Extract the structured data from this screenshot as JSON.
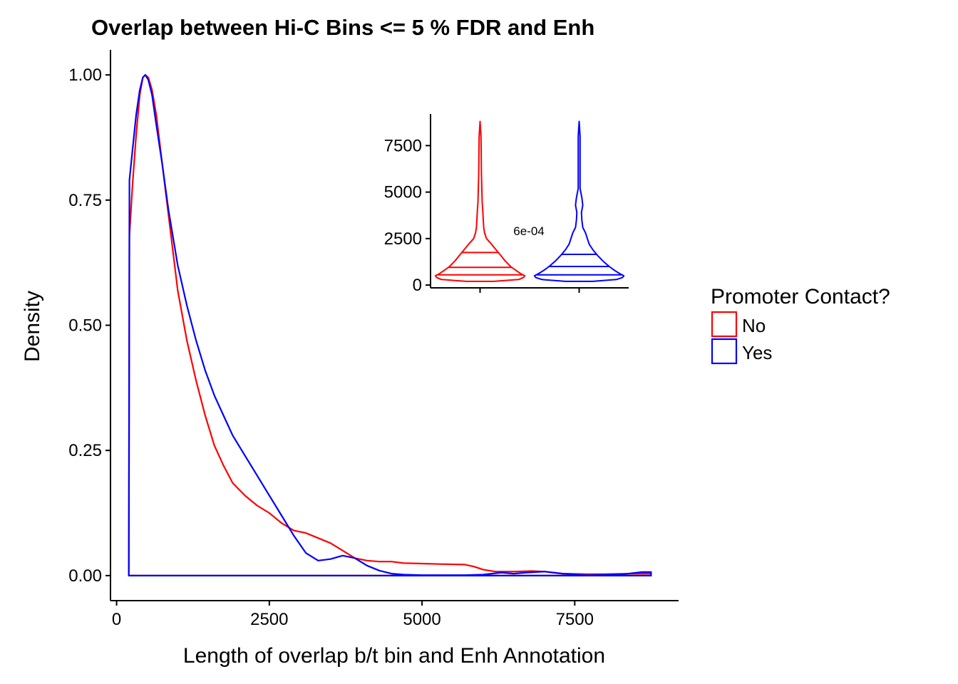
{
  "chart_data": [
    {
      "type": "area",
      "title": "Overlap between Hi-C Bins <= 5 % FDR and Enh",
      "xlabel": "Length of overlap b/t bin and Enh Annotation",
      "ylabel": "Density",
      "xlim": [
        -100,
        9200
      ],
      "ylim": [
        -0.05,
        1.05
      ],
      "x_ticks": [
        "0",
        "2500",
        "5000",
        "7500"
      ],
      "y_ticks": [
        "0.00",
        "0.25",
        "0.50",
        "0.75",
        "1.00"
      ],
      "grid": false,
      "legend": {
        "title": "Promoter Contact?",
        "position": "right",
        "entries": [
          {
            "label": "No",
            "color": "#ff0000"
          },
          {
            "label": "Yes",
            "color": "#0000ff"
          }
        ]
      },
      "series": [
        {
          "name": "No",
          "color": "#ff0000",
          "x": [
            200,
            210,
            260,
            320,
            380,
            430,
            470,
            520,
            580,
            650,
            750,
            850,
            1000,
            1150,
            1300,
            1450,
            1600,
            1750,
            1900,
            2100,
            2300,
            2500,
            2700,
            2900,
            3100,
            3300,
            3500,
            3700,
            3900,
            4100,
            4300,
            4500,
            4700,
            5000,
            5300,
            5700,
            5850,
            6000,
            6200,
            6500,
            6800,
            7000,
            7300,
            7700,
            8000,
            8400,
            8750
          ],
          "y": [
            0.0,
            0.68,
            0.78,
            0.88,
            0.96,
            0.995,
            1.0,
            0.995,
            0.97,
            0.92,
            0.82,
            0.72,
            0.57,
            0.47,
            0.39,
            0.32,
            0.26,
            0.22,
            0.185,
            0.16,
            0.14,
            0.125,
            0.105,
            0.09,
            0.085,
            0.075,
            0.065,
            0.05,
            0.035,
            0.03,
            0.028,
            0.028,
            0.025,
            0.024,
            0.023,
            0.022,
            0.018,
            0.012,
            0.008,
            0.008,
            0.009,
            0.008,
            0.004,
            0.003,
            0.003,
            0.004,
            0.004
          ]
        },
        {
          "name": "Yes",
          "color": "#0000ff",
          "x": [
            200,
            210,
            260,
            320,
            380,
            430,
            470,
            520,
            580,
            650,
            750,
            850,
            1000,
            1150,
            1300,
            1450,
            1600,
            1750,
            1900,
            2100,
            2300,
            2500,
            2700,
            2900,
            3100,
            3300,
            3500,
            3700,
            3900,
            4100,
            4300,
            4500,
            4700,
            5000,
            5300,
            5700,
            6000,
            6300,
            6500,
            6700,
            7000,
            7300,
            7700,
            8000,
            8300,
            8600,
            8750
          ],
          "y": [
            0.0,
            0.79,
            0.85,
            0.92,
            0.97,
            0.995,
            1.0,
            0.99,
            0.96,
            0.9,
            0.82,
            0.73,
            0.62,
            0.54,
            0.47,
            0.41,
            0.36,
            0.32,
            0.28,
            0.24,
            0.2,
            0.16,
            0.12,
            0.08,
            0.045,
            0.03,
            0.033,
            0.04,
            0.035,
            0.02,
            0.01,
            0.004,
            0.002,
            0.001,
            0.001,
            0.001,
            0.002,
            0.006,
            0.004,
            0.006,
            0.008,
            0.004,
            0.001,
            0.002,
            0.003,
            0.007,
            0.007
          ]
        }
      ]
    },
    {
      "type": "violin",
      "annotation": "6e-04",
      "ylim": [
        -150,
        9200
      ],
      "y_ticks": [
        "0",
        "2500",
        "5000",
        "7500"
      ],
      "groups": [
        {
          "name": "No",
          "color": "#ff0000",
          "quantiles": [
            550,
            950,
            1750
          ],
          "y": [
            200,
            300,
            400,
            500,
            600,
            800,
            1000,
            1300,
            1600,
            1900,
            2200,
            2500,
            2800,
            3100,
            3500,
            4000,
            4500,
            5000,
            6000,
            7000,
            8000,
            8800
          ],
          "halfwidth": [
            0.3,
            0.85,
            0.95,
            0.98,
            0.9,
            0.78,
            0.67,
            0.55,
            0.45,
            0.35,
            0.25,
            0.14,
            0.1,
            0.08,
            0.07,
            0.06,
            0.045,
            0.04,
            0.03,
            0.025,
            0.02,
            0.0
          ]
        },
        {
          "name": "Yes",
          "color": "#0000ff",
          "quantiles": [
            550,
            1000,
            1650
          ],
          "y": [
            200,
            300,
            400,
            500,
            600,
            800,
            1000,
            1300,
            1600,
            1900,
            2200,
            2500,
            2800,
            3100,
            3500,
            3900,
            4300,
            4700,
            5200,
            6000,
            7000,
            8000,
            8800
          ],
          "halfwidth": [
            0.3,
            0.82,
            0.95,
            0.98,
            0.9,
            0.77,
            0.66,
            0.52,
            0.4,
            0.3,
            0.22,
            0.18,
            0.14,
            0.08,
            0.06,
            0.05,
            0.08,
            0.06,
            0.02,
            0.02,
            0.02,
            0.02,
            0.0
          ]
        }
      ]
    }
  ]
}
